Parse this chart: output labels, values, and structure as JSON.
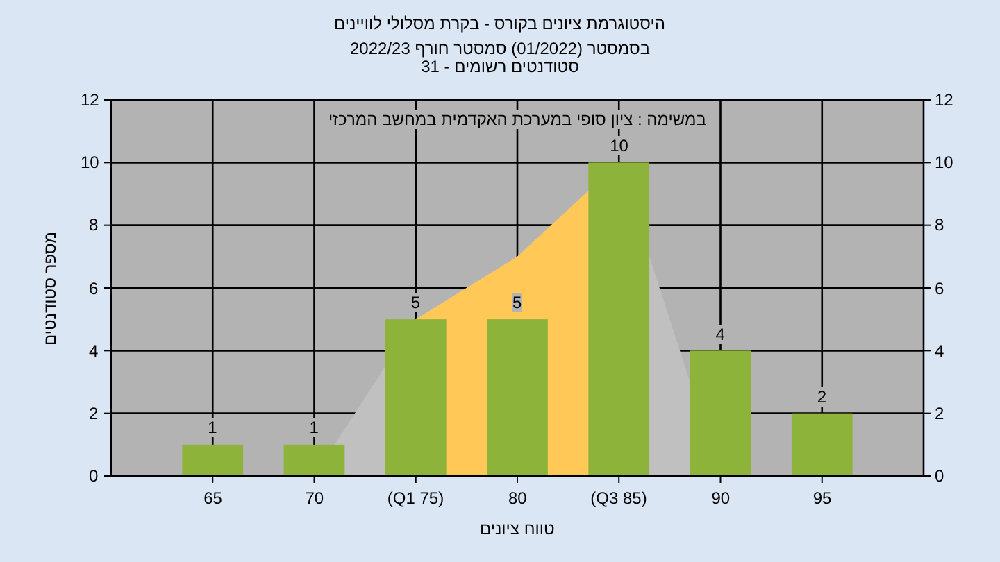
{
  "chart_data": {
    "type": "bar",
    "title": "היסטוגרמת ציונים בקורס - בקרת מסלולי לוויינים",
    "subtitle": "בסמסטר  (01/2022)  סמסטר חורף 2022/23\nסטודנטים רשומים - 31",
    "xlabel": "טווח ציונים",
    "ylabel": "מספר סטודנטים",
    "annotations": [
      "במשימה : ציון סופי במערכת האקדמית במחשב המרכזי"
    ],
    "categories": [
      "65",
      "70",
      "(Q1 75)",
      "80",
      "(Q3 85)",
      "90",
      "95"
    ],
    "series": [
      {
        "type": "area",
        "color": "#c0c0c0",
        "values": [
          null,
          0,
          5,
          7,
          10,
          0,
          null
        ]
      },
      {
        "type": "area",
        "color": "#ffc857",
        "values": [
          null,
          null,
          5,
          7,
          10,
          null,
          null
        ]
      },
      {
        "color": "#8db33a",
        "values": [
          1,
          1,
          5,
          5,
          10,
          4,
          2
        ],
        "value_labels": [
          "1",
          "1",
          "5",
          "5",
          "10",
          "4",
          "2"
        ]
      }
    ],
    "ylim": [
      0,
      12
    ],
    "yticks": [
      0,
      2,
      4,
      6,
      8,
      10,
      12
    ],
    "y2lim": [
      0,
      12
    ],
    "y2ticks": [
      0,
      2,
      4,
      6,
      8,
      10,
      12
    ],
    "grid": true
  }
}
